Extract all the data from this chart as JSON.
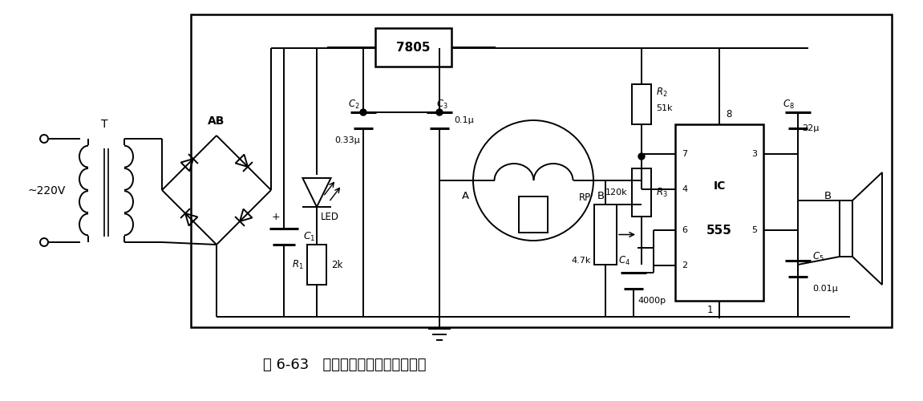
{
  "title": "图 6-63   气体烟雾检测报警器电路图",
  "title_fontsize": 13,
  "bg_color": "#ffffff",
  "line_color": "#000000",
  "line_width": 1.4,
  "components": {
    "voltage": "~220V",
    "transformer": "T",
    "bridge": "AB",
    "C1_label": "$C_1$",
    "R1_label": "$R_1$",
    "R1_val": "2k",
    "LED_label": "LED",
    "C2_label": "$C_2$",
    "C2_val": "0.33μ",
    "C3_label": "$C_3$",
    "C3_val": "0.1μ",
    "IC_7805": "7805",
    "sensor_A": "A",
    "sensor_B": "B",
    "R2_label": "$R_2$",
    "R2_val": "51k",
    "R3_label": "$R_3$",
    "R3_120k": "120k",
    "RP_label": "RP",
    "RP_val": "4.7k",
    "C4_label": "$C_4$",
    "C4_val": "4000p",
    "IC_label": "IC",
    "IC_555": "555",
    "C8_label": "$C_8$",
    "C8_val": "22μ",
    "C5_label": "$C_5$",
    "C5_val": "0.01μ",
    "speaker_label": "B",
    "plus": "+"
  }
}
